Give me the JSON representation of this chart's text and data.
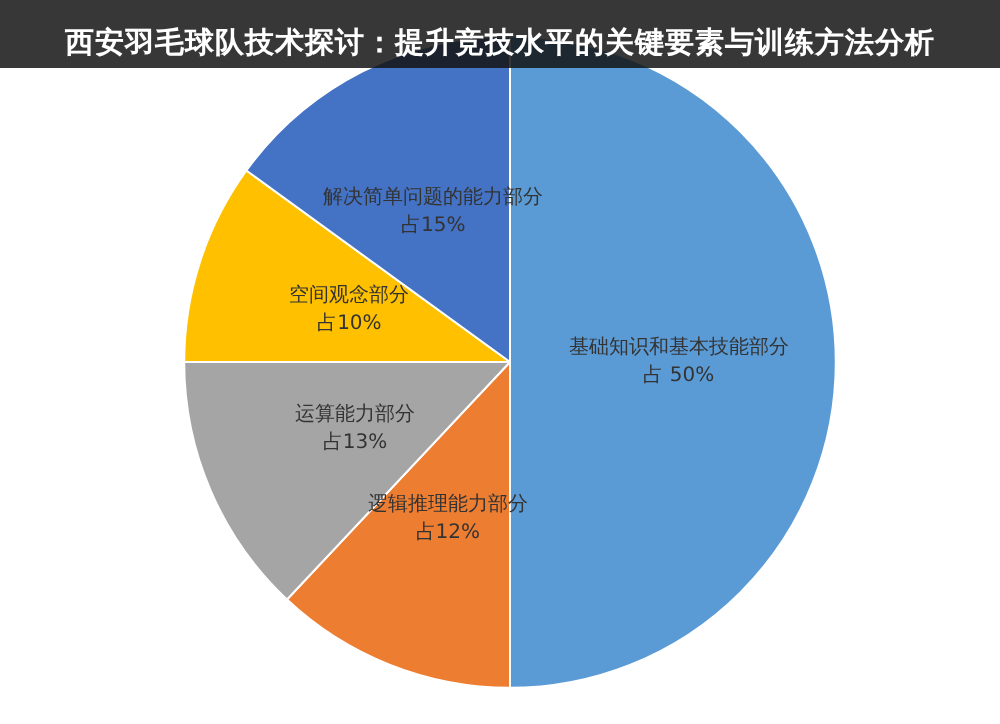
{
  "chart_data": {
    "type": "pie",
    "title": "西安羽毛球队技术探讨：提升竞技水平的关键要素与训练方法分析",
    "categories": [
      "基础知识和基本技能部分",
      "逻辑推理能力部分",
      "运算能力部分",
      "空间观念部分",
      "解决简单问题的能力部分"
    ],
    "values": [
      50,
      12,
      13,
      10,
      15
    ],
    "value_labels": [
      "占 50%",
      "占12%",
      "占13%",
      "占10%",
      "占15%"
    ],
    "colors": [
      "#5b9bd5",
      "#ed7d31",
      "#a5a5a5",
      "#ffc000",
      "#4472c4"
    ],
    "legend": false
  }
}
